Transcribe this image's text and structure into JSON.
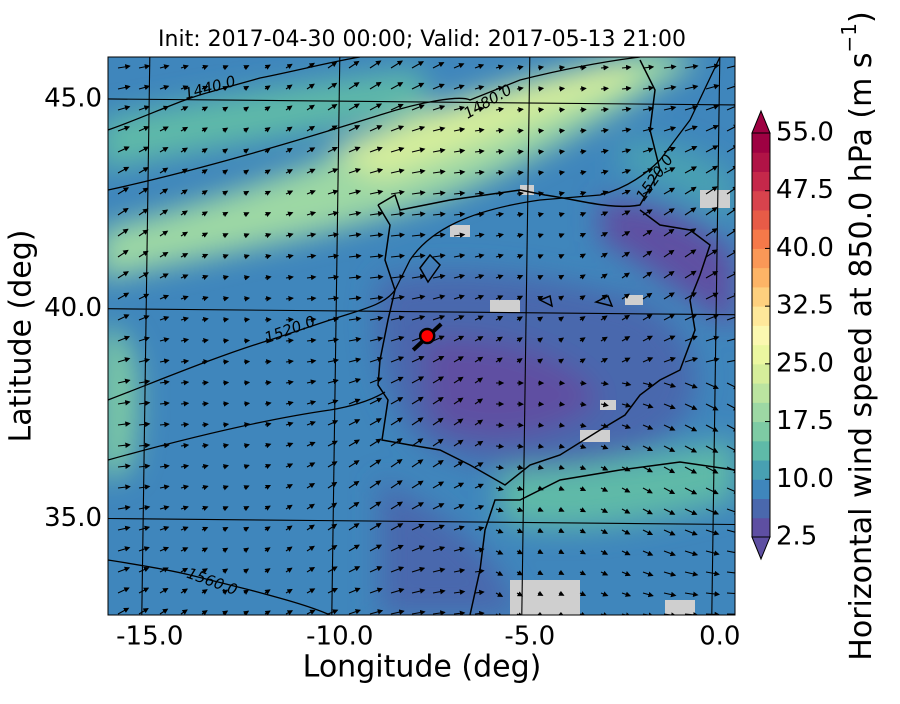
{
  "chart_data": {
    "type": "map",
    "title": "Init: 2017-04-30 00:00; Valid: 2017-05-13 21:00",
    "x_label": "Longitude (deg)",
    "y_label": "Latitude (deg)",
    "xlim": [
      -16.1,
      0.4
    ],
    "ylim": [
      32.7,
      46.0
    ],
    "xticks": [
      {
        "value": -15,
        "label": "-15.0"
      },
      {
        "value": -10,
        "label": "-10.0"
      },
      {
        "value": -5,
        "label": "-5.0"
      },
      {
        "value": 0,
        "label": "0.0"
      }
    ],
    "yticks": [
      {
        "value": 35,
        "label": "35.0"
      },
      {
        "value": 40,
        "label": "40.0"
      },
      {
        "value": 45,
        "label": "45.0"
      }
    ],
    "grid": true,
    "contour_labels": [
      "1440.0",
      "1480.0",
      "1520.0",
      "1520.0",
      "1560.0"
    ],
    "marker": {
      "x": -7.7,
      "y": 39.35,
      "color": "#ff0000"
    },
    "colorbar": {
      "label": "Horizontal wind speed at 850.0 hPa (m s",
      "label_exponent": "−1",
      "label_end": ")",
      "lim": [
        2.5,
        55
      ],
      "ticks": [
        2.5,
        {
          "value": 10,
          "label": "10.0"
        },
        17.5,
        {
          "value": 25,
          "label": "25.0"
        },
        32.5,
        {
          "value": 40,
          "label": "40.0"
        },
        47.5,
        {
          "value": 55,
          "label": "55.0"
        }
      ],
      "colors": [
        "#5e4fa2",
        "#4a68ad",
        "#3f86bc",
        "#48a0b2",
        "#5fbaa8",
        "#7ecba4",
        "#9dd8a4",
        "#bbe4a0",
        "#d6ee9b",
        "#ebf7a0",
        "#fbf8b0",
        "#fee89a",
        "#fed07e",
        "#fdb466",
        "#fa9857",
        "#f57949",
        "#e75b47",
        "#d8434d",
        "#c5284a",
        "#b01346",
        "#9e0142"
      ]
    }
  }
}
